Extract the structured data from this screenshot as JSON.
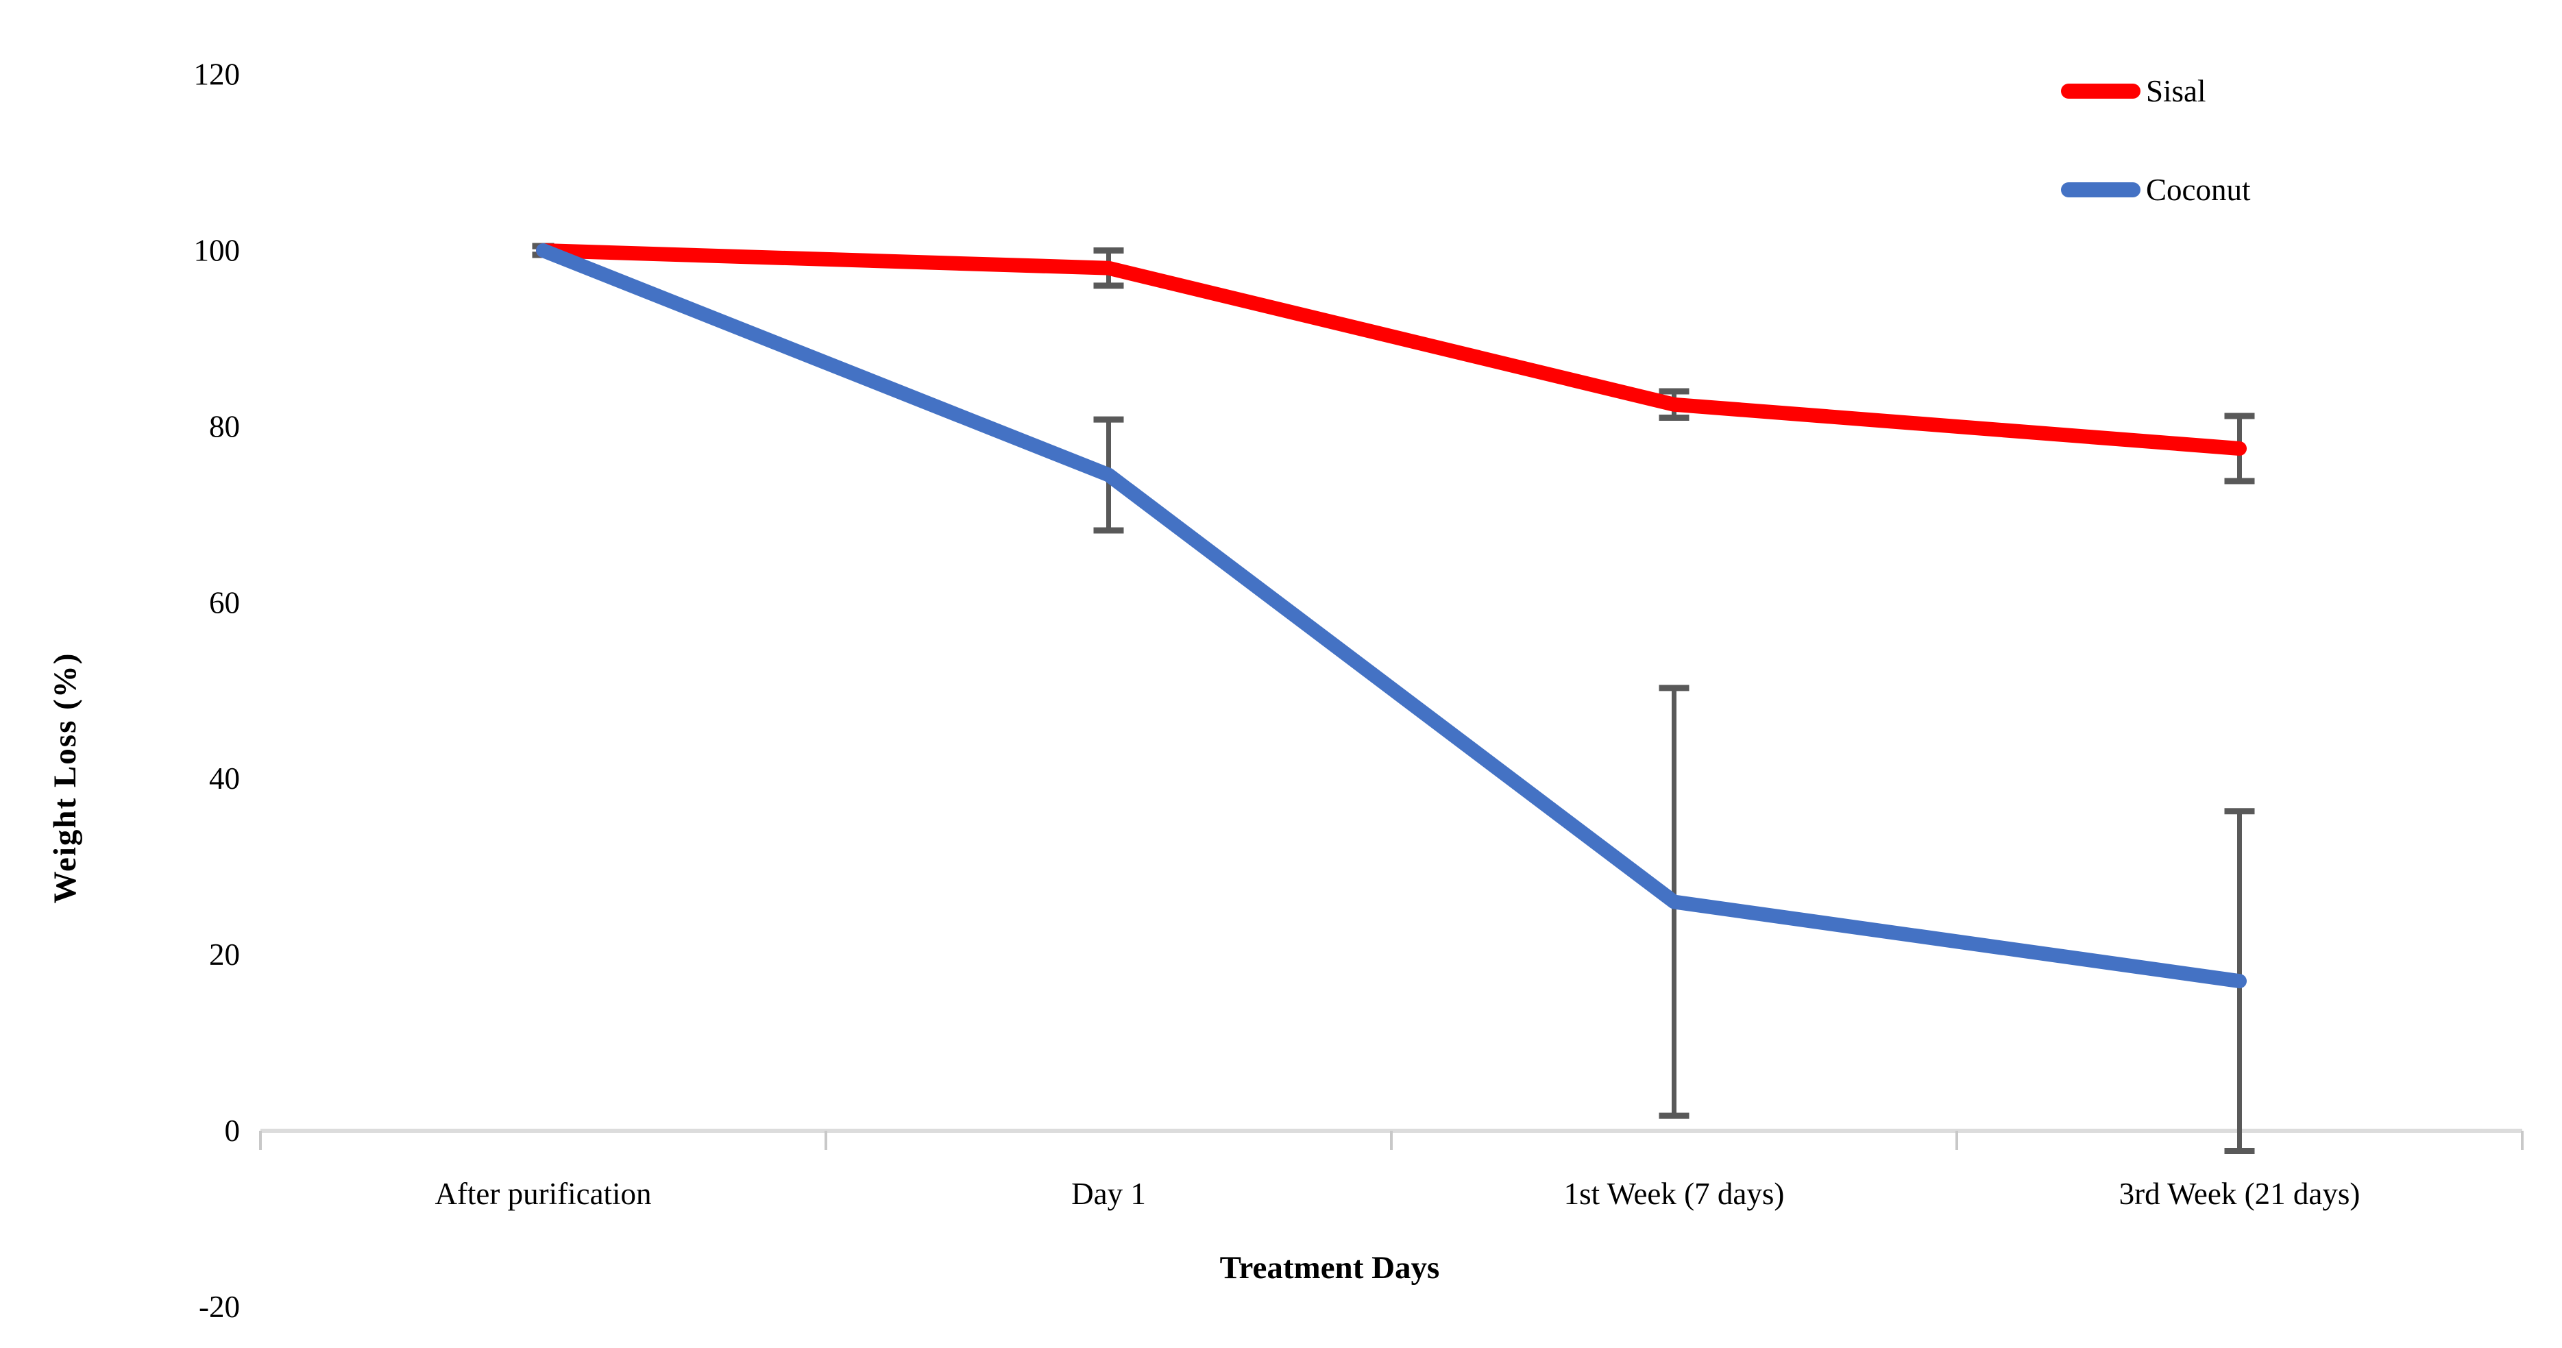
{
  "chart_data": {
    "type": "line",
    "title": "",
    "xlabel": "Treatment Days",
    "ylabel": "Weight Loss (%)",
    "categories": [
      "After purification",
      "Day 1",
      "1st Week (7 days)",
      "3rd Week (21 days)"
    ],
    "series": [
      {
        "name": "Sisal",
        "color": "#FF0000",
        "values": [
          100,
          98,
          82.5,
          77.5
        ],
        "error_plus_minus": [
          0.5,
          2,
          1.5,
          3.7
        ]
      },
      {
        "name": "Coconut",
        "color": "#4472C4",
        "values": [
          100,
          74.5,
          26,
          17
        ],
        "error_plus_minus": [
          0.5,
          6.3,
          24.3,
          19.3
        ]
      }
    ],
    "ylim": [
      -20,
      120
    ],
    "yticks": [
      120,
      100,
      80,
      60,
      40,
      20,
      0,
      -20
    ],
    "grid": false,
    "legend_position": "top-right",
    "error_bar_color": "#595959",
    "axis_color": "#DCDCDC",
    "tick_color": "#C8C8C8",
    "text_color": "#000000"
  }
}
